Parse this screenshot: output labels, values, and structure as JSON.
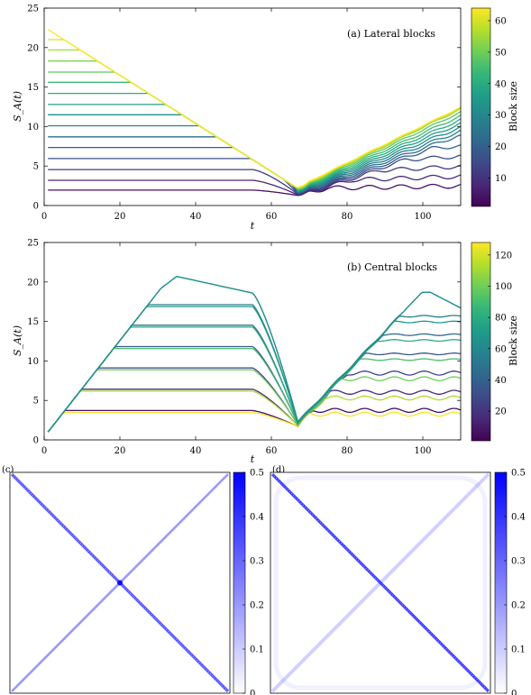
{
  "chart_data": [
    {
      "type": "line",
      "panel": "a",
      "annotation": "(a) Lateral blocks",
      "xlabel": "t",
      "ylabel": "S_A(t)",
      "xlim": [
        0,
        110
      ],
      "ylim": [
        0,
        25
      ],
      "xticks": [
        "0",
        "20",
        "40",
        "60",
        "80",
        "100"
      ],
      "yticks": [
        "0",
        "5",
        "10",
        "15",
        "20",
        "25"
      ],
      "colorbar": {
        "label": "Block size",
        "range": [
          1,
          64
        ],
        "ticks": [
          "10",
          "20",
          "30",
          "40",
          "50",
          "60"
        ],
        "colormap": "viridis"
      },
      "envelope": {
        "start": [
          0,
          22.6
        ],
        "slope_down": -0.305,
        "min": [
          67,
          2.3
        ],
        "end": [
          110,
          12.4
        ]
      },
      "series": [
        {
          "block_size": 4,
          "plateau": 1.95
        },
        {
          "block_size": 8,
          "plateau": 3.2
        },
        {
          "block_size": 12,
          "plateau": 4.55
        },
        {
          "block_size": 16,
          "plateau": 5.95
        },
        {
          "block_size": 20,
          "plateau": 7.35
        },
        {
          "block_size": 24,
          "plateau": 8.7
        },
        {
          "block_size": 28,
          "plateau": 10.1
        },
        {
          "block_size": 32,
          "plateau": 11.5
        },
        {
          "block_size": 36,
          "plateau": 12.8
        },
        {
          "block_size": 40,
          "plateau": 14.2
        },
        {
          "block_size": 44,
          "plateau": 15.6
        },
        {
          "block_size": 48,
          "plateau": 16.9
        },
        {
          "block_size": 52,
          "plateau": 18.3
        },
        {
          "block_size": 56,
          "plateau": 19.7
        },
        {
          "block_size": 60,
          "plateau": 21.0
        },
        {
          "block_size": 64,
          "plateau": 22.3
        }
      ]
    },
    {
      "type": "line",
      "panel": "b",
      "annotation": "(b) Central blocks",
      "xlabel": "t",
      "ylabel": "S_A(t)",
      "xlim": [
        0,
        110
      ],
      "ylim": [
        0,
        25
      ],
      "xticks": [
        "0",
        "20",
        "40",
        "60",
        "80",
        "100"
      ],
      "yticks": [
        "0",
        "5",
        "10",
        "15",
        "20",
        "25"
      ],
      "colorbar": {
        "label": "Block size",
        "range": [
          1,
          128
        ],
        "ticks": [
          "20",
          "40",
          "60",
          "80",
          "100",
          "120"
        ],
        "colormap": "viridis"
      },
      "growth": {
        "start": [
          1,
          1.0
        ],
        "slope": 0.61
      },
      "series": [
        {
          "pair": [
            6,
            126
          ],
          "plateau": 3.6
        },
        {
          "pair": [
            16,
            112
          ],
          "plateau": 6.3
        },
        {
          "pair": [
            26,
            100
          ],
          "plateau": 9.0
        },
        {
          "pair": [
            36,
            90
          ],
          "plateau": 11.7
        },
        {
          "pair": [
            46,
            80
          ],
          "plateau": 14.4
        },
        {
          "pair": [
            56,
            70
          ],
          "plateau": 17.0
        },
        {
          "pair": [
            62,
            64
          ],
          "plateau": 19.2,
          "peak": 20.7
        }
      ]
    },
    {
      "type": "heatmap",
      "panel": "c",
      "label": "(c)",
      "colorbar": {
        "range": [
          0,
          0.5
        ],
        "ticks": [
          "0",
          "0.1",
          "0.2",
          "0.3",
          "0.4",
          "0.5"
        ]
      },
      "description_values": {
        "main_diagonal": 0.33,
        "anti_diagonal": 0.2,
        "center": 0.45
      }
    },
    {
      "type": "heatmap",
      "panel": "d",
      "label": "(d)",
      "colorbar": {
        "range": [
          0,
          0.5
        ],
        "ticks": [
          "0",
          "0.1",
          "0.2",
          "0.3",
          "0.4",
          "0.5"
        ]
      },
      "description_values": {
        "main_diagonal": 0.38,
        "anti_diagonal": 0.09,
        "frame": 0.03
      }
    }
  ],
  "colors": {
    "viridis": [
      "#440154",
      "#482878",
      "#3e4a89",
      "#31688e",
      "#26828e",
      "#1f9e89",
      "#35b779",
      "#6ece58",
      "#b5de2b",
      "#fde725"
    ],
    "heat_max": "#0000ff"
  }
}
